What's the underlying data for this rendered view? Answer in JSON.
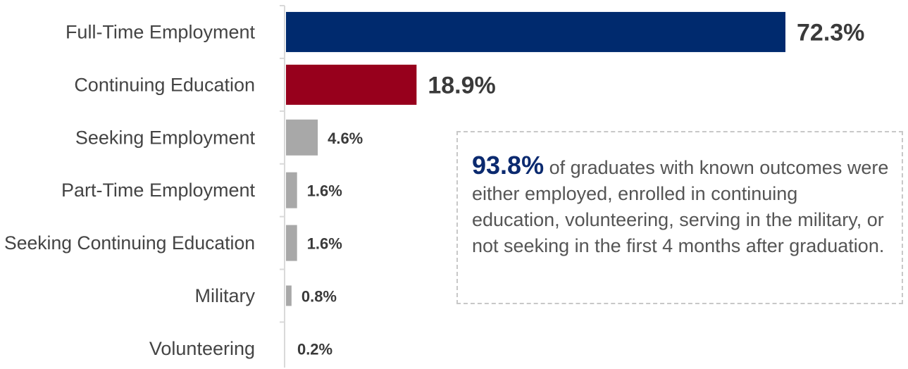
{
  "chart_data": {
    "type": "bar",
    "orientation": "horizontal",
    "categories": [
      "Full-Time Employment",
      "Continuing Education",
      "Seeking Employment",
      "Part-Time Employment",
      "Seeking Continuing Education",
      "Military",
      "Volunteering"
    ],
    "values": [
      72.3,
      18.9,
      4.6,
      1.6,
      1.6,
      0.8,
      0.2
    ],
    "value_labels": [
      "72.3%",
      "18.9%",
      "4.6%",
      "1.6%",
      "1.6%",
      "0.8%",
      "0.2%"
    ],
    "bar_colors": [
      "#002a6e",
      "#97001c",
      "#a8a8a8",
      "#a8a8a8",
      "#a8a8a8",
      "#a8a8a8",
      "#a8a8a8"
    ],
    "xlim": [
      0,
      72.3
    ],
    "grid": false
  },
  "callout": {
    "highlight": "93.8%",
    "text": "of graduates with known outcomes were either employed, enrolled in continuing education, volunteering, serving in the military, or not seeking in the first 4 months after graduation."
  }
}
